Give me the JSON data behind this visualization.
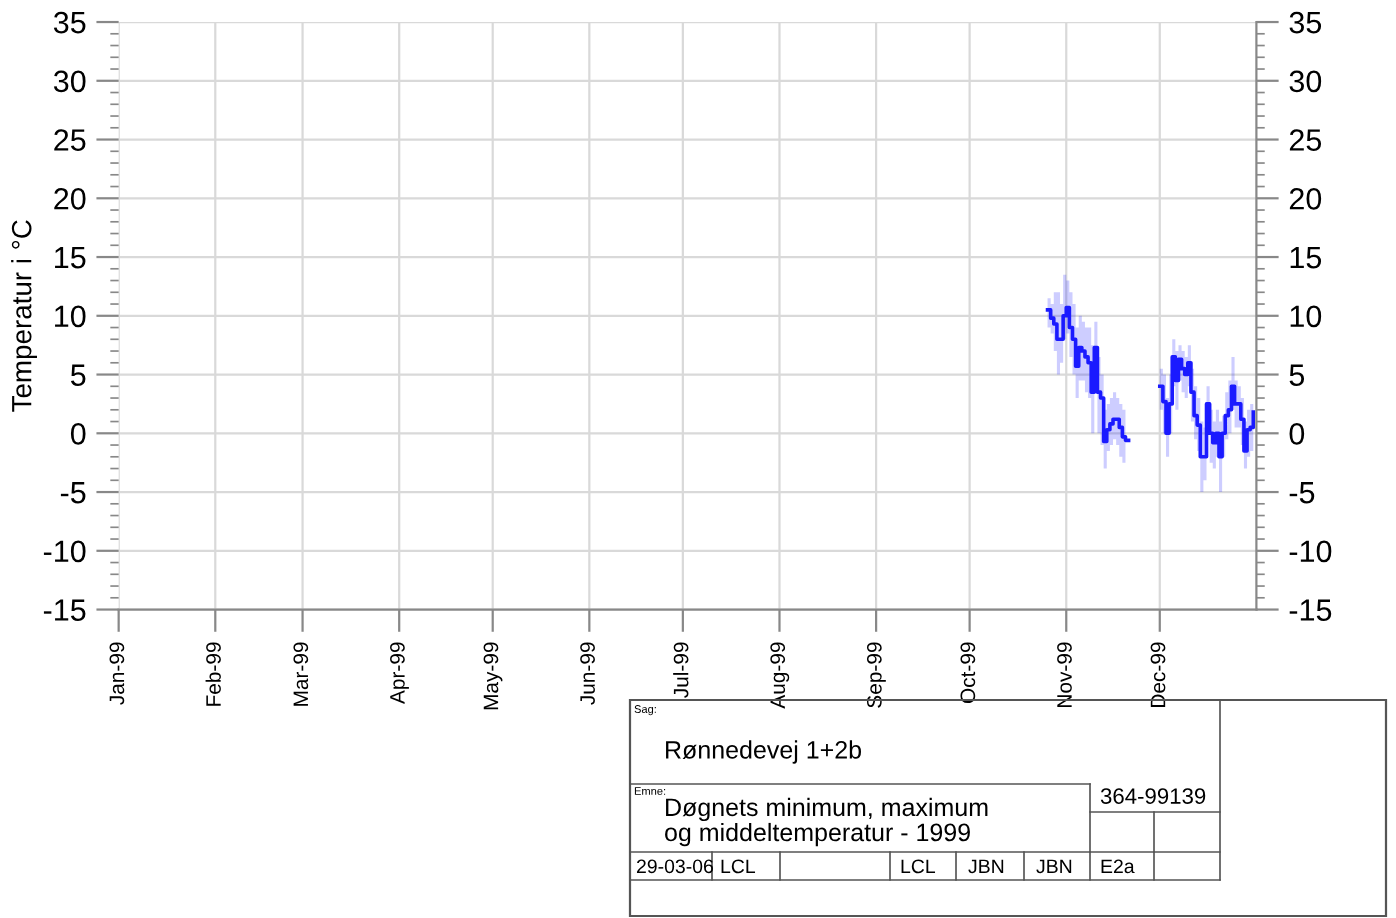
{
  "chart_data": {
    "type": "step",
    "ylabel": "Temperatur i °C",
    "x": [
      "1999-10-26",
      "1999-10-27",
      "1999-10-28",
      "1999-10-29",
      "1999-10-30",
      "1999-10-31",
      "1999-11-01",
      "1999-11-02",
      "1999-11-03",
      "1999-11-04",
      "1999-11-05",
      "1999-11-06",
      "1999-11-07",
      "1999-11-08",
      "1999-11-09",
      "1999-11-10",
      "1999-11-11",
      "1999-11-12",
      "1999-11-13",
      "1999-11-14",
      "1999-11-15",
      "1999-11-16",
      "1999-11-17",
      "1999-11-18",
      "1999-11-19",
      "1999-11-20",
      "1999-11-21",
      "1999-12-01",
      "1999-12-02",
      "1999-12-03",
      "1999-12-04",
      "1999-12-05",
      "1999-12-06",
      "1999-12-07",
      "1999-12-08",
      "1999-12-09",
      "1999-12-10",
      "1999-12-11",
      "1999-12-12",
      "1999-12-13",
      "1999-12-14",
      "1999-12-15",
      "1999-12-16",
      "1999-12-17",
      "1999-12-18",
      "1999-12-19",
      "1999-12-20",
      "1999-12-21",
      "1999-12-22",
      "1999-12-23",
      "1999-12-24",
      "1999-12-25",
      "1999-12-26",
      "1999-12-27",
      "1999-12-28",
      "1999-12-29",
      "1999-12-30",
      "1999-12-31"
    ],
    "series": [
      {
        "color": "#1a1aff",
        "values": [
          10.5,
          9.8,
          9.3,
          8.0,
          8.0,
          10.0,
          10.7,
          9.0,
          8.0,
          5.7,
          7.3,
          7.0,
          6.5,
          6.0,
          3.5,
          7.3,
          3.5,
          3.0,
          -0.7,
          0.3,
          0.8,
          1.2,
          1.2,
          0.5,
          -0.3,
          -0.6,
          null,
          4,
          2.7,
          0,
          2.5,
          6.5,
          4.5,
          6.3,
          5.5,
          5,
          6,
          3.5,
          1.5,
          0.7,
          -2,
          -2,
          2.5,
          0,
          -0.8,
          0,
          -2,
          0,
          1.5,
          2,
          4,
          2.5,
          2.5,
          1.2,
          -1.5,
          0.3,
          0.5,
          1.8
        ],
        "upper": [
          11.5,
          11,
          12,
          12,
          11,
          13.5,
          13,
          12,
          11,
          9,
          10,
          9.5,
          9,
          9,
          7.5,
          9.5,
          6.5,
          5,
          2,
          2.5,
          3,
          3.5,
          3,
          2.5,
          2,
          1.5,
          null,
          5.5,
          5,
          3,
          5,
          8,
          7,
          7.5,
          7,
          6.5,
          7.5,
          5.5,
          4,
          3,
          1,
          0.5,
          4,
          2,
          1,
          2,
          1,
          1.5,
          3.5,
          4.5,
          6.5,
          4.5,
          4,
          3,
          1,
          2,
          2.5,
          3
        ],
        "lower": [
          9,
          8.5,
          7,
          5,
          6,
          8,
          8.5,
          6.5,
          5,
          3,
          4.5,
          4.5,
          3.5,
          3,
          0,
          4,
          0,
          -1,
          -3,
          -1.5,
          -1,
          -0.5,
          -1,
          -2,
          -2.5,
          -2.5,
          null,
          2,
          0,
          -2,
          0,
          4,
          2,
          4.5,
          3.5,
          3,
          4,
          1,
          -0.5,
          -1.5,
          -5,
          -4,
          0,
          -2.5,
          -3,
          -2,
          -5,
          -2,
          -0.5,
          0,
          2,
          0.5,
          0.5,
          -1,
          -3,
          -2,
          -1.5,
          0
        ]
      }
    ],
    "xlim": [
      "1999-01-01",
      "2000-01-01"
    ],
    "xticks": [
      {
        "value": "1999-01-01",
        "label": "Jan-99"
      },
      {
        "value": "1999-02-01",
        "label": "Feb-99"
      },
      {
        "value": "1999-03-01",
        "label": "Mar-99"
      },
      {
        "value": "1999-04-01",
        "label": "Apr-99"
      },
      {
        "value": "1999-05-01",
        "label": "May-99"
      },
      {
        "value": "1999-06-01",
        "label": "Jun-99"
      },
      {
        "value": "1999-07-01",
        "label": "Jul-99"
      },
      {
        "value": "1999-08-01",
        "label": "Aug-99"
      },
      {
        "value": "1999-09-01",
        "label": "Sep-99"
      },
      {
        "value": "1999-10-01",
        "label": "Oct-99"
      },
      {
        "value": "1999-11-01",
        "label": "Nov-99"
      },
      {
        "value": "1999-12-01",
        "label": "Dec-99"
      }
    ],
    "ylim": [
      -15,
      35
    ],
    "yticks": [
      -15,
      -10,
      -5,
      0,
      5,
      10,
      15,
      20,
      25,
      30,
      35
    ],
    "y2lim": [
      -15,
      35
    ],
    "y2ticks": [
      -15,
      -10,
      -5,
      0,
      5,
      10,
      15,
      20,
      25,
      30,
      35
    ],
    "grid": true,
    "annotations": [
      "Sag:",
      "Rønnedevej 1+2b",
      "Emne:",
      "Døgnets minimum, maximum\nog middeltemperatur - 1999",
      "364-99139",
      "29-03-06",
      "LCL",
      "LCL",
      "JBN",
      "JBN",
      "E2a"
    ]
  }
}
